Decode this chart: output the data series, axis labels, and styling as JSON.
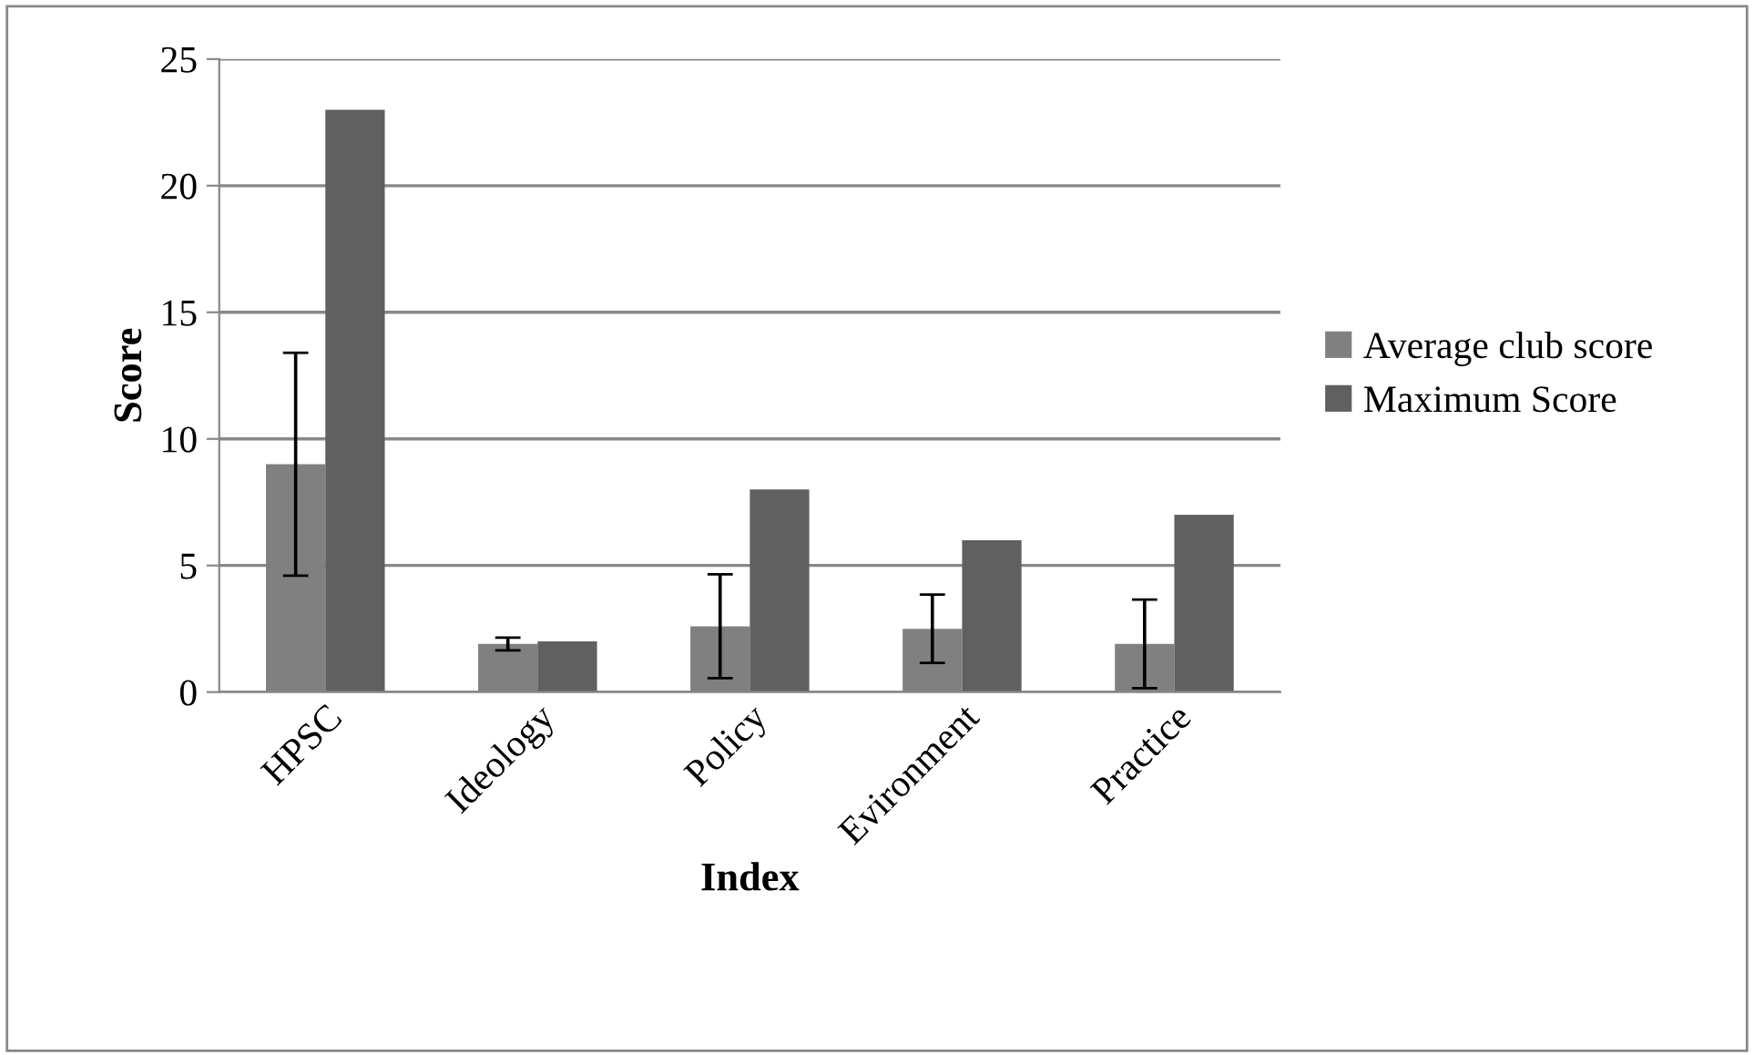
{
  "chart_data": {
    "type": "bar",
    "xlabel": "Index",
    "ylabel": "Score",
    "categories": [
      "HPSC",
      "Ideology",
      "Policy",
      "Evironment",
      "Practice"
    ],
    "series": [
      {
        "name": "Average club score",
        "color": "#808080",
        "values": [
          9.0,
          1.9,
          2.6,
          2.5,
          1.9
        ],
        "errors": [
          4.4,
          0.25,
          2.05,
          1.35,
          1.75
        ]
      },
      {
        "name": "Maximum Score",
        "color": "#606060",
        "values": [
          23,
          2,
          8,
          6,
          7
        ]
      }
    ],
    "ylim": [
      0,
      25
    ],
    "yticks": [
      0,
      5,
      10,
      15,
      20,
      25
    ],
    "grid": "y",
    "legend": "right"
  }
}
